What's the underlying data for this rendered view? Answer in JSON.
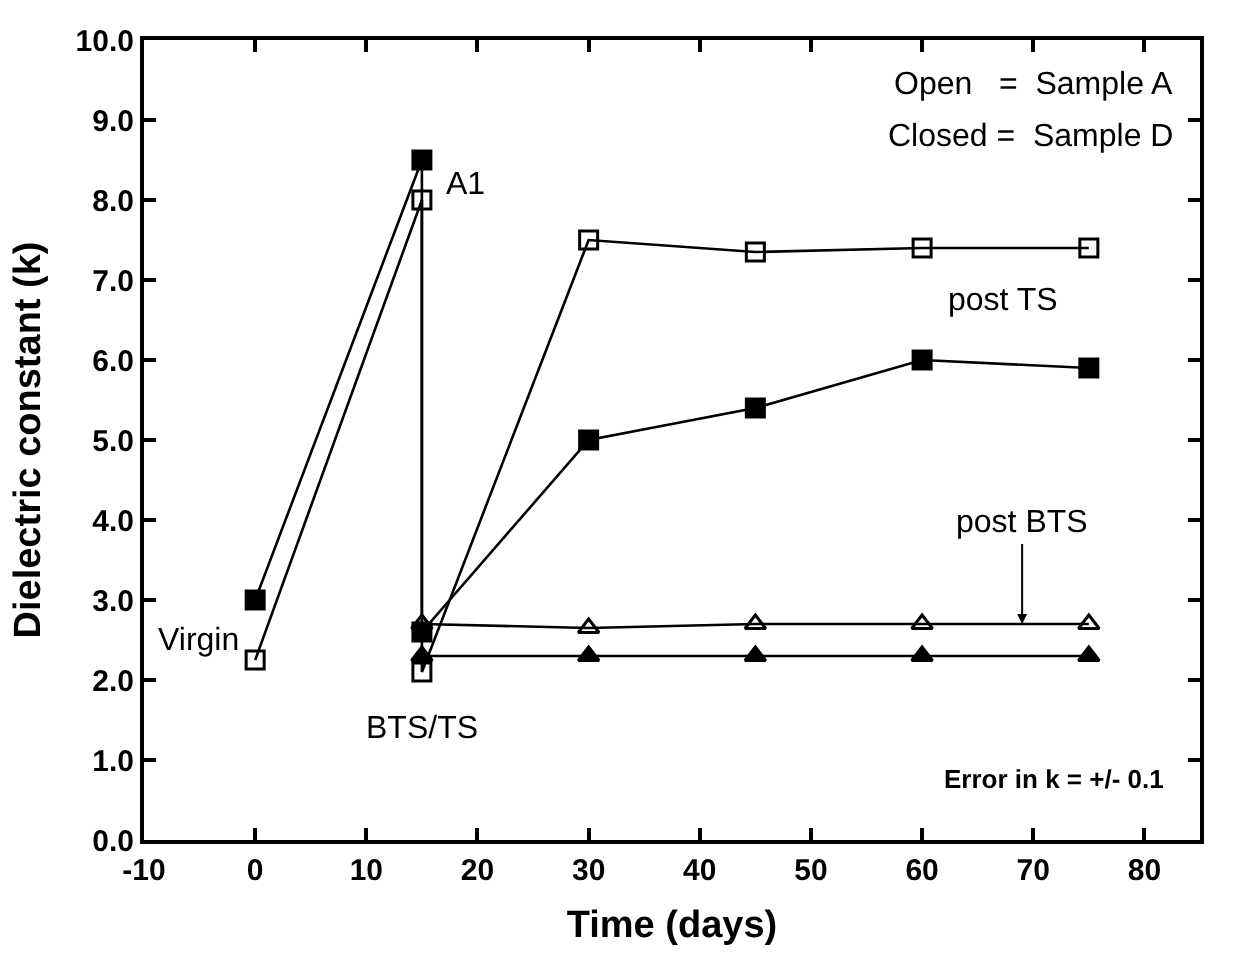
{
  "chart_data": {
    "type": "line",
    "xlabel": "Time (days)",
    "ylabel": "Dielectric constant (k)",
    "xlim": [
      -10,
      85
    ],
    "xticks": [
      -10,
      0,
      10,
      20,
      30,
      40,
      50,
      60,
      70,
      80
    ],
    "ylim": [
      0,
      10
    ],
    "yticks": [
      {
        "value": 0,
        "label": "0.0"
      },
      {
        "value": 1,
        "label": "1.0"
      },
      {
        "value": 2,
        "label": "2.0"
      },
      {
        "value": 3,
        "label": "3.0"
      },
      {
        "value": 4,
        "label": "4.0"
      },
      {
        "value": 5,
        "label": "5.0"
      },
      {
        "value": 6,
        "label": "6.0"
      },
      {
        "value": 7,
        "label": "7.0"
      },
      {
        "value": 8,
        "label": "8.0"
      },
      {
        "value": 9,
        "label": "9.0"
      },
      {
        "value": 10,
        "label": "10.0"
      }
    ],
    "line_style": "solid",
    "series": [
      {
        "color": "#000000",
        "marker": "square-open",
        "x": [
          0,
          15,
          15,
          30,
          45,
          60,
          75
        ],
        "values": [
          2.25,
          8.0,
          2.1,
          7.5,
          7.35,
          7.4,
          7.4
        ]
      },
      {
        "color": "#000000",
        "marker": "square",
        "x": [
          0,
          15,
          15,
          30,
          45,
          60,
          75
        ],
        "values": [
          3.0,
          8.5,
          2.6,
          5.0,
          5.4,
          6.0,
          5.9
        ]
      },
      {
        "color": "#000000",
        "marker": "triangle-open",
        "x": [
          15,
          30,
          45,
          60,
          75
        ],
        "values": [
          2.7,
          2.65,
          2.7,
          2.7,
          2.7
        ]
      },
      {
        "color": "#000000",
        "marker": "triangle",
        "x": [
          15,
          30,
          45,
          60,
          75
        ],
        "values": [
          2.3,
          2.3,
          2.3,
          2.3,
          2.3
        ]
      }
    ],
    "annotations": [
      "Open   =  Sample A",
      "Closed =  Sample D",
      "Error in k = +/- 0.1",
      {
        "text": "A1",
        "x": 15,
        "y": 8.0
      },
      {
        "text": "Virgin",
        "x": 0,
        "y": 2.25
      },
      {
        "text": "BTS/TS",
        "x": 15,
        "y": 2.1
      },
      "post TS",
      {
        "text": "post BTS",
        "x": 69,
        "y": 2.7
      }
    ]
  }
}
